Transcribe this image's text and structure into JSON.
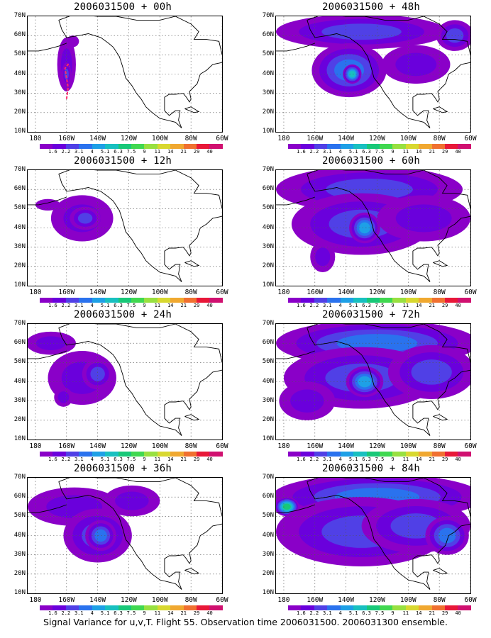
{
  "figure": {
    "caption": "Signal Variance for u,v,T. Flight 55. Observation time 2006031500. 2006031300 ensemble.",
    "colorbar": {
      "labels": [
        "1.6",
        "2.2",
        "3.1",
        "4",
        "5.1",
        "6.3",
        "7.5",
        "9",
        "11",
        "14",
        "21",
        "29",
        "40"
      ],
      "colors": [
        "#8a00c8",
        "#6a00dc",
        "#5040e6",
        "#2a72ee",
        "#1ea0e6",
        "#18c0c0",
        "#18c878",
        "#40d850",
        "#98e040",
        "#d8d830",
        "#f0a830",
        "#f07030",
        "#e81838",
        "#d01070"
      ]
    },
    "axes": {
      "ytick_labels": [
        "70N",
        "60N",
        "50N",
        "40N",
        "30N",
        "20N",
        "10N"
      ],
      "xtick_labels": [
        "180",
        "160W",
        "140W",
        "120W",
        "100W",
        "80W",
        "60W"
      ],
      "lon_range": [
        -185,
        -60
      ],
      "lat_range": [
        10,
        70
      ]
    }
  },
  "chart_data": [
    {
      "type": "heatmap",
      "title": "2006031500 + 00h",
      "lead_hours": 0,
      "blobs": [
        {
          "lon": -160,
          "lat": 45,
          "rlon": 6,
          "rlat": 14,
          "level": 2
        },
        {
          "lon": -160,
          "lat": 40,
          "rlon": 3,
          "rlat": 6,
          "level": 3
        },
        {
          "lon": -156,
          "lat": 57,
          "rlon": 4,
          "rlat": 3,
          "level": 1
        }
      ],
      "track_lon": [
        -160,
        -159,
        -160,
        -161,
        -159,
        -158
      ],
      "track_lat": [
        27,
        33,
        38,
        43,
        45,
        44
      ]
    },
    {
      "type": "heatmap",
      "title": "2006031500 + 12h",
      "lead_hours": 12,
      "blobs": [
        {
          "lon": -150,
          "lat": 45,
          "rlon": 20,
          "rlat": 12,
          "level": 2
        },
        {
          "lon": -148,
          "lat": 45,
          "rlon": 10,
          "rlat": 6,
          "level": 3
        },
        {
          "lon": -172,
          "lat": 52,
          "rlon": 8,
          "rlat": 3,
          "level": 1
        }
      ]
    },
    {
      "type": "heatmap",
      "title": "2006031500 + 24h",
      "lead_hours": 24,
      "blobs": [
        {
          "lon": -150,
          "lat": 42,
          "rlon": 22,
          "rlat": 14,
          "level": 2
        },
        {
          "lon": -140,
          "lat": 44,
          "rlon": 10,
          "rlat": 8,
          "level": 3
        },
        {
          "lon": -170,
          "lat": 60,
          "rlon": 16,
          "rlat": 6,
          "level": 2
        },
        {
          "lon": -162,
          "lat": 32,
          "rlon": 6,
          "rlat": 5,
          "level": 2
        }
      ]
    },
    {
      "type": "heatmap",
      "title": "2006031500 + 36h",
      "lead_hours": 36,
      "blobs": [
        {
          "lon": -155,
          "lat": 55,
          "rlon": 30,
          "rlat": 10,
          "level": 2
        },
        {
          "lon": -140,
          "lat": 40,
          "rlon": 22,
          "rlat": 14,
          "level": 3
        },
        {
          "lon": -138,
          "lat": 40,
          "rlon": 10,
          "rlat": 8,
          "level": 4
        },
        {
          "lon": -118,
          "lat": 58,
          "rlon": 18,
          "rlat": 8,
          "level": 2
        }
      ]
    },
    {
      "type": "heatmap",
      "title": "2006031500 + 48h",
      "lead_hours": 48,
      "blobs": [
        {
          "lon": -130,
          "lat": 62,
          "rlon": 55,
          "rlat": 9,
          "level": 3
        },
        {
          "lon": -138,
          "lat": 42,
          "rlon": 24,
          "rlat": 14,
          "level": 4
        },
        {
          "lon": -136,
          "lat": 40,
          "rlon": 6,
          "rlat": 5,
          "level": 6
        },
        {
          "lon": -95,
          "lat": 45,
          "rlon": 22,
          "rlat": 10,
          "level": 2
        },
        {
          "lon": -70,
          "lat": 60,
          "rlon": 12,
          "rlat": 8,
          "level": 3
        }
      ]
    },
    {
      "type": "heatmap",
      "title": "2006031500 + 60h",
      "lead_hours": 60,
      "blobs": [
        {
          "lon": -125,
          "lat": 60,
          "rlon": 60,
          "rlat": 12,
          "level": 3
        },
        {
          "lon": -130,
          "lat": 42,
          "rlon": 45,
          "rlat": 16,
          "level": 3
        },
        {
          "lon": -128,
          "lat": 40,
          "rlon": 10,
          "rlat": 8,
          "level": 5
        },
        {
          "lon": -90,
          "lat": 45,
          "rlon": 30,
          "rlat": 12,
          "level": 2
        },
        {
          "lon": -155,
          "lat": 25,
          "rlon": 8,
          "rlat": 8,
          "level": 2
        }
      ]
    },
    {
      "type": "heatmap",
      "title": "2006031500 + 72h",
      "lead_hours": 72,
      "blobs": [
        {
          "lon": -120,
          "lat": 60,
          "rlon": 65,
          "rlat": 12,
          "level": 4
        },
        {
          "lon": -130,
          "lat": 42,
          "rlon": 50,
          "rlat": 16,
          "level": 3
        },
        {
          "lon": -128,
          "lat": 40,
          "rlon": 12,
          "rlat": 8,
          "level": 5
        },
        {
          "lon": -85,
          "lat": 45,
          "rlon": 28,
          "rlat": 14,
          "level": 3
        },
        {
          "lon": -165,
          "lat": 30,
          "rlon": 18,
          "rlat": 10,
          "level": 2
        }
      ]
    },
    {
      "type": "heatmap",
      "title": "2006031500 + 84h",
      "lead_hours": 84,
      "blobs": [
        {
          "lon": -120,
          "lat": 60,
          "rlon": 68,
          "rlat": 12,
          "level": 4
        },
        {
          "lon": -178,
          "lat": 55,
          "rlon": 8,
          "rlat": 5,
          "level": 7
        },
        {
          "lon": -130,
          "lat": 42,
          "rlon": 55,
          "rlat": 18,
          "level": 3
        },
        {
          "lon": -95,
          "lat": 45,
          "rlon": 35,
          "rlat": 14,
          "level": 3
        },
        {
          "lon": -75,
          "lat": 40,
          "rlon": 14,
          "rlat": 10,
          "level": 4
        }
      ]
    }
  ]
}
